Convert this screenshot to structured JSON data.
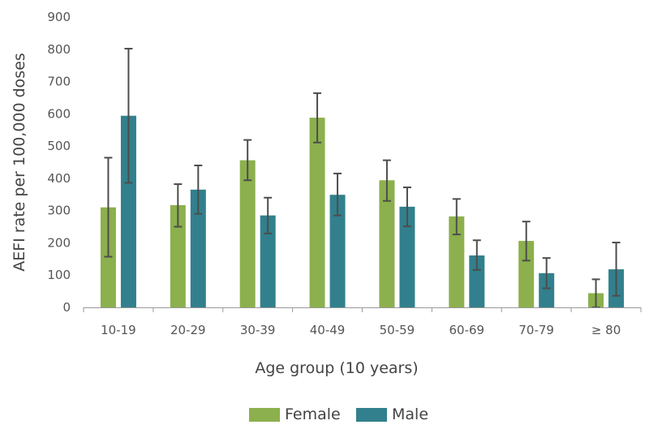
{
  "chart_data": {
    "type": "bar",
    "title": "",
    "xlabel": "Age group (10 years)",
    "ylabel": "AEFI rate per 100,000 doses",
    "ylim": [
      0,
      900
    ],
    "yticks": [
      0,
      100,
      200,
      300,
      400,
      500,
      600,
      700,
      800,
      900
    ],
    "categories": [
      "10-19",
      "20-29",
      "30-39",
      "40-49",
      "50-59",
      "60-69",
      "70-79",
      "≥ 80"
    ],
    "series": [
      {
        "name": "Female",
        "color": "#8CB04D",
        "values": [
          310,
          317,
          456,
          588,
          394,
          282,
          206,
          44
        ],
        "error_low": [
          157,
          250,
          394,
          511,
          330,
          226,
          145,
          0
        ],
        "error_high": [
          464,
          382,
          519,
          664,
          456,
          336,
          266,
          87
        ]
      },
      {
        "name": "Male",
        "color": "#32808D",
        "values": [
          594,
          365,
          285,
          349,
          312,
          161,
          106,
          118
        ],
        "error_low": [
          386,
          290,
          229,
          285,
          251,
          116,
          59,
          36
        ],
        "error_high": [
          802,
          440,
          340,
          415,
          372,
          208,
          153,
          201
        ]
      }
    ],
    "legend_position": "bottom",
    "grid": false
  }
}
